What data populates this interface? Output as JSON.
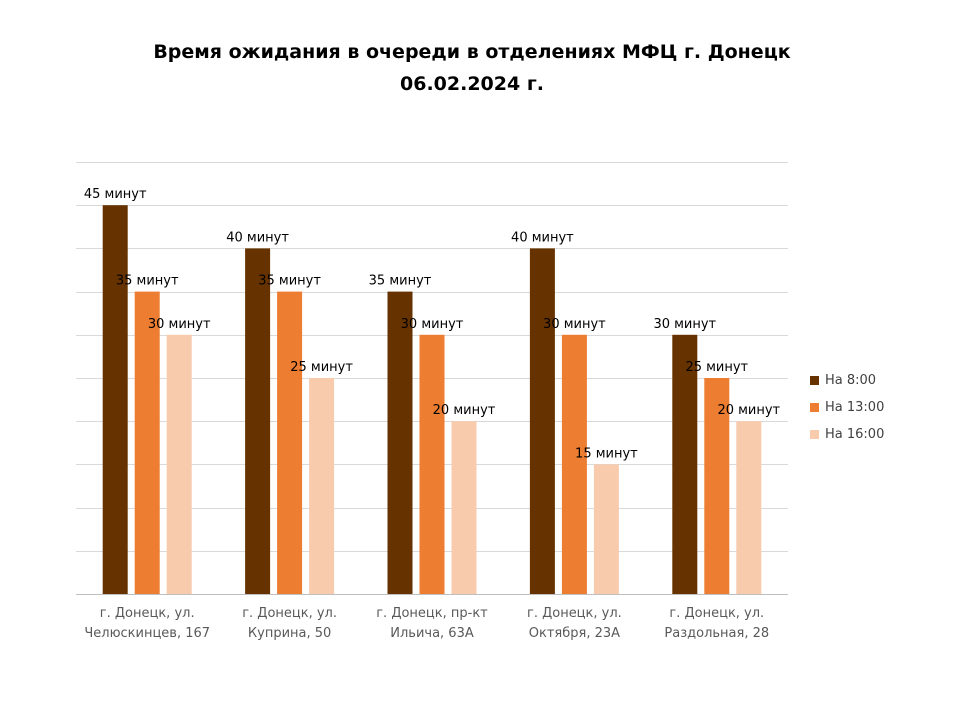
{
  "chart_data": {
    "type": "bar",
    "title_line1": "Время ожидания в очереди в отделениях МФЦ г. Донецк",
    "title_line2": "06.02.2024 г.",
    "categories": [
      [
        "г. Донецк, ул.",
        "Челюскинцев, 167"
      ],
      [
        "г. Донецк, ул.",
        "Куприна, 50"
      ],
      [
        "г. Донецк, пр-кт",
        "Ильича, 63А"
      ],
      [
        "г. Донецк, ул.",
        "Октября, 23А"
      ],
      [
        "г. Донецк, ул.",
        "Раздольная, 28"
      ]
    ],
    "series": [
      {
        "name": "На 8:00",
        "color": "#663300",
        "values": [
          45,
          40,
          35,
          40,
          30
        ],
        "labels": [
          "45 минут",
          "40 минут",
          "35 минут",
          "40 минут",
          "30 минут"
        ]
      },
      {
        "name": "На 13:00",
        "color": "#ED7D31",
        "values": [
          35,
          35,
          30,
          30,
          25
        ],
        "labels": [
          "35 минут",
          "35 минут",
          "30 минут",
          "30 минут",
          "25 минут"
        ]
      },
      {
        "name": "На 16:00",
        "color": "#F8CBAD",
        "values": [
          30,
          25,
          20,
          15,
          20
        ],
        "labels": [
          "30 минут",
          "25 минут",
          "20 минут",
          "15 минут",
          "20 минут"
        ]
      }
    ],
    "ylim": [
      0,
      50
    ],
    "grid": true,
    "legend_position": "right"
  }
}
